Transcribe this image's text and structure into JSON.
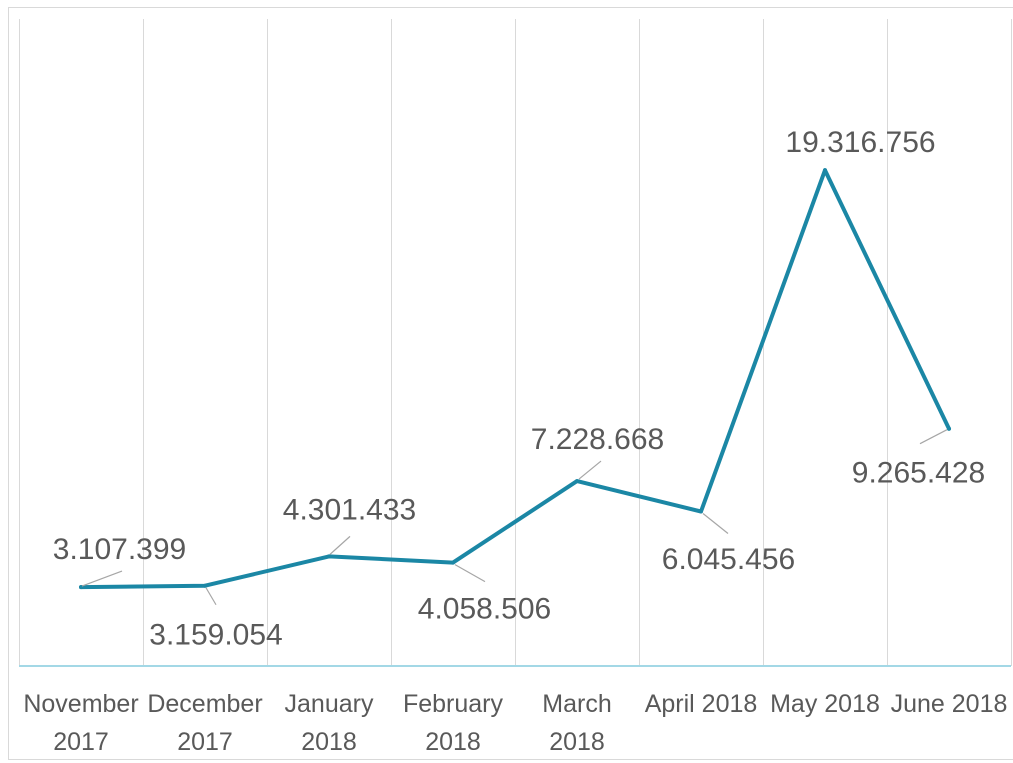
{
  "chart_data": {
    "type": "line",
    "categories": [
      "November 2017",
      "December 2017",
      "January 2018",
      "February 2018",
      "March 2018",
      "April 2018",
      "May 2018",
      "June 2018"
    ],
    "values": [
      3107399,
      3159054,
      4301433,
      4058506,
      7228668,
      6045456,
      19316756,
      9265428
    ],
    "data_labels": [
      "3.107.399",
      "3.159.054",
      "4.301.433",
      "4.058.506",
      "7.228.668",
      "6.045.456",
      "19.316.756",
      "9.265.428"
    ],
    "ylim": [
      0,
      25000000
    ],
    "y_axis_visible": false,
    "grid": {
      "vertical": true,
      "horizontal": false
    },
    "colors": {
      "line": "#1b87a5",
      "labels": "#595959",
      "gridlines": "#d9d9d9",
      "axis": "#a3d8e6",
      "leader": "#a6a6a6"
    }
  }
}
